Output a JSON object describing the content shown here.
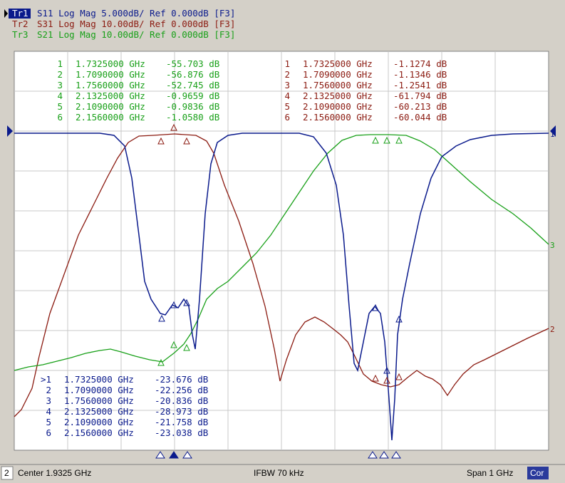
{
  "traces": [
    {
      "id": "Tr1",
      "text": "S11 Log Mag 5.000dB/ Ref 0.000dB [F3]",
      "color": "#0a1a8c",
      "end_label": "1"
    },
    {
      "id": "Tr2",
      "text": "S31 Log Mag 10.00dB/ Ref 0.000dB [F3]",
      "color": "#8b1a10",
      "end_label": "2"
    },
    {
      "id": "Tr3",
      "text": "S21 Log Mag 10.00dB/ Ref 0.000dB [F3]",
      "color": "#18a018",
      "end_label": "3"
    }
  ],
  "marker_tables": [
    {
      "trace": "Tr3",
      "rows": [
        [
          "1",
          "1.7325000 GHz",
          "-55.703 dB"
        ],
        [
          "2",
          "1.7090000 GHz",
          "-56.876 dB"
        ],
        [
          "3",
          "1.7560000 GHz",
          "-52.745 dB"
        ],
        [
          "4",
          "2.1325000 GHz",
          "-0.9659 dB"
        ],
        [
          "5",
          "2.1090000 GHz",
          "-0.9836 dB"
        ],
        [
          "6",
          "2.1560000 GHz",
          "-1.0580 dB"
        ]
      ]
    },
    {
      "trace": "Tr2",
      "rows": [
        [
          "1",
          "1.7325000 GHz",
          "-1.1274 dB"
        ],
        [
          "2",
          "1.7090000 GHz",
          "-1.1346 dB"
        ],
        [
          "3",
          "1.7560000 GHz",
          "-1.2541 dB"
        ],
        [
          "4",
          "2.1325000 GHz",
          "-61.794 dB"
        ],
        [
          "5",
          "2.1090000 GHz",
          "-60.213 dB"
        ],
        [
          "6",
          "2.1560000 GHz",
          "-60.044 dB"
        ]
      ]
    },
    {
      "trace": "Tr1",
      "rows": [
        [
          ">1",
          "1.7325000 GHz",
          "-23.676 dB"
        ],
        [
          "2",
          "1.7090000 GHz",
          "-22.256 dB"
        ],
        [
          "3",
          "1.7560000 GHz",
          "-20.836 dB"
        ],
        [
          "4",
          "2.1325000 GHz",
          "-28.973 dB"
        ],
        [
          "5",
          "2.1090000 GHz",
          "-21.758 dB"
        ],
        [
          "6",
          "2.1560000 GHz",
          "-23.038 dB"
        ]
      ]
    }
  ],
  "status_bar": {
    "channel": "2",
    "center": "Center 1.9325 GHz",
    "ifbw": "IFBW 70 kHz",
    "span": "Span 1 GHz",
    "correction": "Cor"
  }
}
